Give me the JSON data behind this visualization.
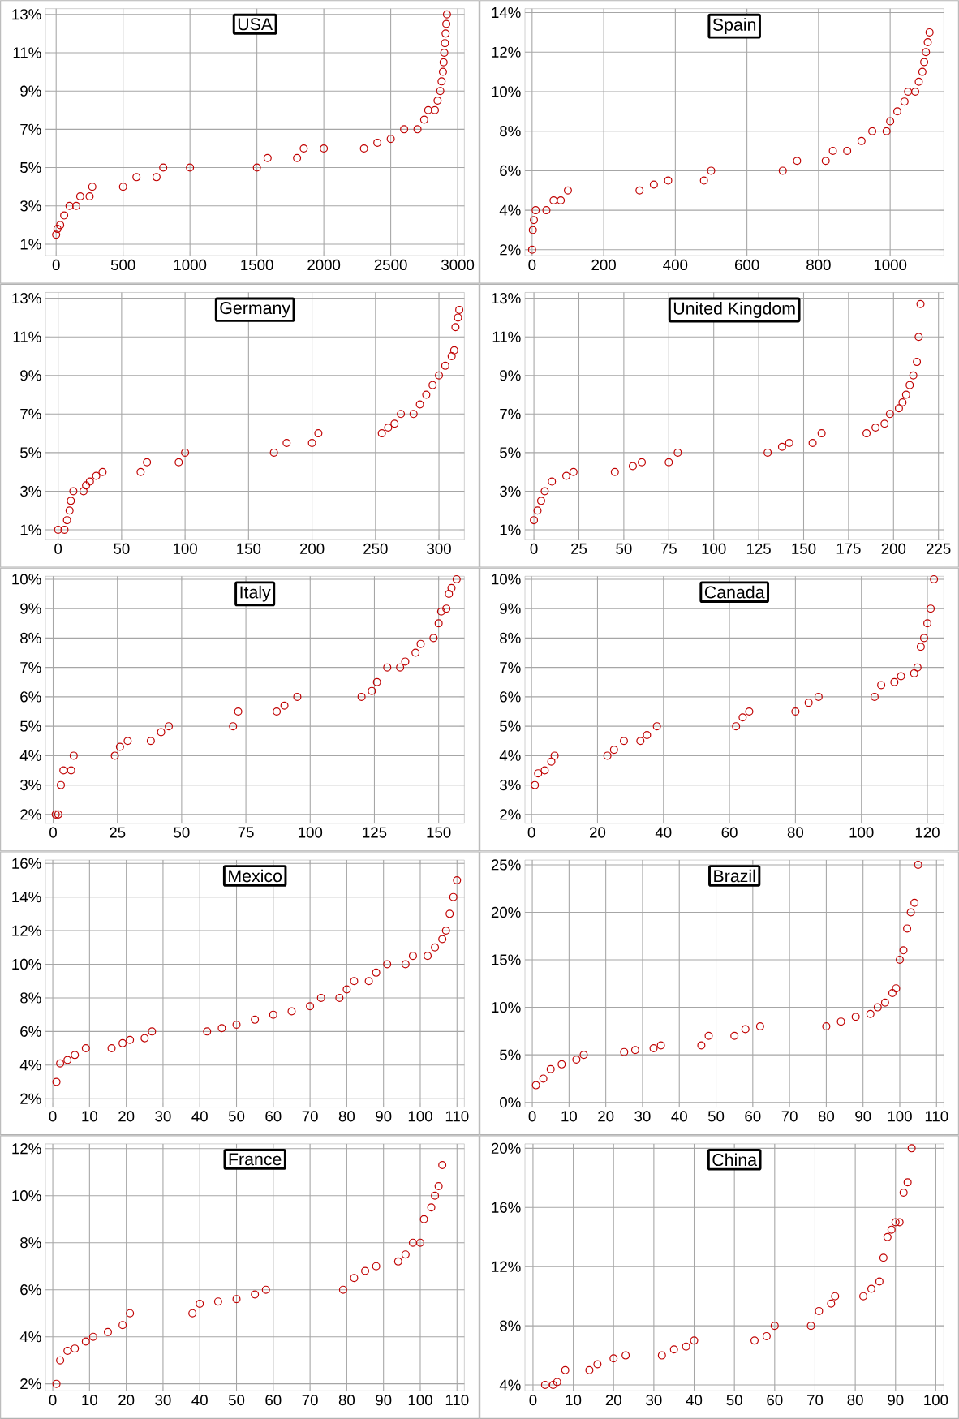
{
  "chart_data": [
    {
      "type": "scatter",
      "title": "USA",
      "color": "#c00000",
      "marker": "circle",
      "grid": true,
      "xlim": [
        -80,
        3050
      ],
      "xticks": [
        0,
        500,
        1000,
        1500,
        2000,
        2500,
        3000
      ],
      "ylim": [
        0.4,
        13.3
      ],
      "yticks": [
        {
          "value": 1,
          "label": "1%"
        },
        {
          "value": 3,
          "label": "3%"
        },
        {
          "value": 5,
          "label": "5%"
        },
        {
          "value": 7,
          "label": "7%"
        },
        {
          "value": 9,
          "label": "9%"
        },
        {
          "value": 11,
          "label": "11%"
        },
        {
          "value": 13,
          "label": "13%"
        }
      ],
      "x": [
        0,
        10,
        30,
        60,
        100,
        150,
        180,
        250,
        270,
        500,
        600,
        750,
        800,
        1000,
        1500,
        1580,
        1800,
        1850,
        2000,
        2300,
        2400,
        2500,
        2600,
        2700,
        2750,
        2780,
        2830,
        2850,
        2870,
        2880,
        2890,
        2895,
        2900,
        2905,
        2910,
        2915,
        2920
      ],
      "values": [
        1.5,
        1.8,
        2,
        2.5,
        3,
        3,
        3.5,
        3.5,
        4,
        4,
        4.5,
        4.5,
        5,
        5,
        5,
        5.5,
        5.5,
        6,
        6,
        6,
        6.3,
        6.5,
        7,
        7,
        7.5,
        8,
        8,
        8.5,
        9,
        9.5,
        10,
        10.5,
        11,
        11.5,
        12,
        12.5,
        13
      ]
    },
    {
      "type": "scatter",
      "title": "Spain",
      "color": "#c00000",
      "marker": "circle",
      "grid": true,
      "xlim": [
        -20,
        1150
      ],
      "xticks": [
        0,
        200,
        400,
        600,
        800,
        1000
      ],
      "ylim": [
        1.7,
        14.2
      ],
      "yticks": [
        {
          "value": 2,
          "label": "2%"
        },
        {
          "value": 4,
          "label": "4%"
        },
        {
          "value": 6,
          "label": "6%"
        },
        {
          "value": 8,
          "label": "8%"
        },
        {
          "value": 10,
          "label": "10%"
        },
        {
          "value": 12,
          "label": "12%"
        },
        {
          "value": 14,
          "label": "14%"
        }
      ],
      "x": [
        0,
        2,
        5,
        10,
        40,
        60,
        80,
        100,
        300,
        340,
        380,
        480,
        500,
        700,
        740,
        820,
        840,
        880,
        920,
        950,
        990,
        1000,
        1020,
        1040,
        1050,
        1070,
        1080,
        1090,
        1095,
        1100,
        1105,
        1110
      ],
      "values": [
        2,
        3,
        3.5,
        4,
        4,
        4.5,
        4.5,
        5,
        5,
        5.3,
        5.5,
        5.5,
        6,
        6,
        6.5,
        6.5,
        7,
        7,
        7.5,
        8,
        8,
        8.5,
        9,
        9.5,
        10,
        10,
        10.5,
        11,
        11.5,
        12,
        12.5,
        13
      ]
    },
    {
      "type": "scatter",
      "title": "Germany",
      "color": "#c00000",
      "marker": "circle",
      "grid": true,
      "xlim": [
        -10,
        320
      ],
      "xticks": [
        0,
        50,
        100,
        150,
        200,
        250,
        300
      ],
      "ylim": [
        0.5,
        13.3
      ],
      "yticks": [
        {
          "value": 1,
          "label": "1%"
        },
        {
          "value": 3,
          "label": "3%"
        },
        {
          "value": 5,
          "label": "5%"
        },
        {
          "value": 7,
          "label": "7%"
        },
        {
          "value": 9,
          "label": "9%"
        },
        {
          "value": 11,
          "label": "11%"
        },
        {
          "value": 13,
          "label": "13%"
        }
      ],
      "x": [
        0,
        5,
        7,
        9,
        10,
        12,
        20,
        22,
        25,
        30,
        35,
        65,
        70,
        95,
        100,
        170,
        180,
        200,
        205,
        255,
        260,
        265,
        270,
        280,
        285,
        290,
        295,
        300,
        305,
        310,
        312,
        313,
        315,
        316
      ],
      "values": [
        1,
        1,
        1.5,
        2,
        2.5,
        3,
        3,
        3.3,
        3.5,
        3.8,
        4,
        4,
        4.5,
        4.5,
        5,
        5,
        5.5,
        5.5,
        6,
        6,
        6.3,
        6.5,
        7,
        7,
        7.5,
        8,
        8.5,
        9,
        9.5,
        10,
        10.3,
        11.5,
        12,
        12.4
      ]
    },
    {
      "type": "scatter",
      "title": "United Kingdom",
      "color": "#c00000",
      "marker": "circle",
      "grid": true,
      "xlim": [
        -5,
        228
      ],
      "xticks": [
        0,
        25,
        50,
        75,
        100,
        125,
        150,
        175,
        200,
        225
      ],
      "ylim": [
        0.5,
        13.3
      ],
      "yticks": [
        {
          "value": 1,
          "label": "1%"
        },
        {
          "value": 3,
          "label": "3%"
        },
        {
          "value": 5,
          "label": "5%"
        },
        {
          "value": 7,
          "label": "7%"
        },
        {
          "value": 9,
          "label": "9%"
        },
        {
          "value": 11,
          "label": "11%"
        },
        {
          "value": 13,
          "label": "13%"
        }
      ],
      "x": [
        0,
        2,
        4,
        6,
        10,
        18,
        22,
        45,
        55,
        60,
        75,
        80,
        130,
        138,
        142,
        155,
        160,
        185,
        190,
        195,
        198,
        203,
        205,
        207,
        209,
        211,
        213,
        214,
        215
      ],
      "values": [
        1.5,
        2,
        2.5,
        3,
        3.5,
        3.8,
        4,
        4,
        4.3,
        4.5,
        4.5,
        5,
        5,
        5.3,
        5.5,
        5.5,
        6,
        6,
        6.3,
        6.5,
        7,
        7.3,
        7.6,
        8,
        8.5,
        9,
        9.7,
        11,
        12.7
      ]
    },
    {
      "type": "scatter",
      "title": "Italy",
      "color": "#c00000",
      "marker": "circle",
      "grid": true,
      "xlim": [
        -3,
        160
      ],
      "xticks": [
        0,
        25,
        50,
        75,
        100,
        125,
        150
      ],
      "ylim": [
        1.7,
        10.1
      ],
      "yticks": [
        {
          "value": 2,
          "label": "2%"
        },
        {
          "value": 3,
          "label": "3%"
        },
        {
          "value": 4,
          "label": "4%"
        },
        {
          "value": 5,
          "label": "5%"
        },
        {
          "value": 6,
          "label": "6%"
        },
        {
          "value": 7,
          "label": "7%"
        },
        {
          "value": 8,
          "label": "8%"
        },
        {
          "value": 9,
          "label": "9%"
        },
        {
          "value": 10,
          "label": "10%"
        }
      ],
      "x": [
        1,
        2,
        3,
        4,
        7,
        8,
        24,
        26,
        29,
        38,
        42,
        45,
        70,
        72,
        87,
        90,
        95,
        120,
        124,
        126,
        130,
        135,
        137,
        141,
        143,
        148,
        150,
        151,
        153,
        154,
        155,
        157
      ],
      "values": [
        2,
        2,
        3,
        3.5,
        3.5,
        4,
        4,
        4.3,
        4.5,
        4.5,
        4.8,
        5,
        5,
        5.5,
        5.5,
        5.7,
        6,
        6,
        6.2,
        6.5,
        7,
        7,
        7.2,
        7.5,
        7.8,
        8,
        8.5,
        8.9,
        9,
        9.5,
        9.7,
        10
      ]
    },
    {
      "type": "scatter",
      "title": "Canada",
      "color": "#c00000",
      "marker": "circle",
      "grid": true,
      "xlim": [
        -2,
        125
      ],
      "xticks": [
        0,
        20,
        40,
        60,
        80,
        100,
        120
      ],
      "ylim": [
        1.7,
        10.1
      ],
      "yticks": [
        {
          "value": 2,
          "label": "2%"
        },
        {
          "value": 3,
          "label": "3%"
        },
        {
          "value": 4,
          "label": "4%"
        },
        {
          "value": 5,
          "label": "5%"
        },
        {
          "value": 6,
          "label": "6%"
        },
        {
          "value": 7,
          "label": "7%"
        },
        {
          "value": 8,
          "label": "8%"
        },
        {
          "value": 9,
          "label": "9%"
        },
        {
          "value": 10,
          "label": "10%"
        }
      ],
      "x": [
        1,
        2,
        4,
        6,
        7,
        23,
        25,
        28,
        33,
        35,
        38,
        62,
        64,
        66,
        80,
        84,
        87,
        104,
        106,
        110,
        112,
        116,
        117,
        118,
        119,
        120,
        121,
        122
      ],
      "values": [
        3,
        3.4,
        3.5,
        3.8,
        4,
        4,
        4.2,
        4.5,
        4.5,
        4.7,
        5,
        5,
        5.3,
        5.5,
        5.5,
        5.8,
        6,
        6,
        6.4,
        6.5,
        6.7,
        6.8,
        7,
        7.7,
        8,
        8.5,
        9,
        10
      ]
    },
    {
      "type": "scatter",
      "title": "Mexico",
      "color": "#c00000",
      "marker": "circle",
      "grid": true,
      "xlim": [
        -2,
        112
      ],
      "xticks": [
        0,
        10,
        20,
        30,
        40,
        50,
        60,
        70,
        80,
        90,
        100,
        110
      ],
      "ylim": [
        1.5,
        16.2
      ],
      "yticks": [
        {
          "value": 2,
          "label": "2%"
        },
        {
          "value": 4,
          "label": "4%"
        },
        {
          "value": 6,
          "label": "6%"
        },
        {
          "value": 8,
          "label": "8%"
        },
        {
          "value": 10,
          "label": "10%"
        },
        {
          "value": 12,
          "label": "12%"
        },
        {
          "value": 14,
          "label": "14%"
        },
        {
          "value": 16,
          "label": "16%"
        }
      ],
      "x": [
        1,
        2,
        4,
        6,
        9,
        16,
        19,
        21,
        25,
        27,
        42,
        46,
        50,
        55,
        60,
        65,
        70,
        73,
        78,
        80,
        82,
        86,
        88,
        91,
        96,
        98,
        102,
        104,
        106,
        107,
        108,
        109,
        110
      ],
      "values": [
        3,
        4.1,
        4.3,
        4.6,
        5,
        5,
        5.3,
        5.5,
        5.6,
        6,
        6,
        6.2,
        6.4,
        6.7,
        7,
        7.2,
        7.5,
        8,
        8,
        8.5,
        9,
        9,
        9.5,
        10,
        10,
        10.5,
        10.5,
        11,
        11.5,
        12,
        13,
        14,
        15
      ]
    },
    {
      "type": "scatter",
      "title": "Brazil",
      "color": "#c00000",
      "marker": "circle",
      "grid": true,
      "xlim": [
        -2,
        112
      ],
      "xticks": [
        0,
        10,
        20,
        30,
        40,
        50,
        60,
        70,
        80,
        90,
        100,
        110
      ],
      "ylim": [
        -0.5,
        25.5
      ],
      "yticks": [
        {
          "value": 0,
          "label": "0%"
        },
        {
          "value": 5,
          "label": "5%"
        },
        {
          "value": 10,
          "label": "10%"
        },
        {
          "value": 15,
          "label": "15%"
        },
        {
          "value": 20,
          "label": "20%"
        },
        {
          "value": 25,
          "label": "25%"
        }
      ],
      "x": [
        1,
        3,
        5,
        8,
        12,
        14,
        25,
        28,
        33,
        35,
        46,
        48,
        55,
        58,
        62,
        80,
        84,
        88,
        92,
        94,
        96,
        98,
        99,
        100,
        101,
        102,
        103,
        104,
        105
      ],
      "values": [
        1.8,
        2.5,
        3.5,
        4,
        4.5,
        5,
        5.3,
        5.5,
        5.7,
        6,
        6,
        7,
        7,
        7.7,
        8,
        8,
        8.5,
        9,
        9.3,
        10,
        10.5,
        11.5,
        12,
        15,
        16,
        18.3,
        20,
        21,
        25
      ]
    },
    {
      "type": "scatter",
      "title": "France",
      "color": "#c00000",
      "marker": "circle",
      "grid": true,
      "xlim": [
        -2,
        112
      ],
      "xticks": [
        0,
        10,
        20,
        30,
        40,
        50,
        60,
        70,
        80,
        90,
        100,
        110
      ],
      "ylim": [
        1.7,
        12.2
      ],
      "yticks": [
        {
          "value": 2,
          "label": "2%"
        },
        {
          "value": 4,
          "label": "4%"
        },
        {
          "value": 6,
          "label": "6%"
        },
        {
          "value": 8,
          "label": "8%"
        },
        {
          "value": 10,
          "label": "10%"
        },
        {
          "value": 12,
          "label": "12%"
        }
      ],
      "x": [
        1,
        2,
        4,
        6,
        9,
        11,
        15,
        19,
        21,
        38,
        40,
        45,
        50,
        55,
        58,
        79,
        82,
        85,
        88,
        94,
        96,
        98,
        100,
        101,
        103,
        104,
        105,
        106
      ],
      "values": [
        2,
        3,
        3.4,
        3.5,
        3.8,
        4,
        4.2,
        4.5,
        5,
        5,
        5.4,
        5.5,
        5.6,
        5.8,
        6,
        6,
        6.5,
        6.8,
        7,
        7.2,
        7.5,
        8,
        8,
        9,
        9.5,
        10,
        10.4,
        11.3
      ]
    },
    {
      "type": "scatter",
      "title": "China",
      "color": "#c00000",
      "marker": "circle",
      "grid": true,
      "xlim": [
        -2,
        102
      ],
      "xticks": [
        0,
        10,
        20,
        30,
        40,
        50,
        60,
        70,
        80,
        90,
        100
      ],
      "ylim": [
        3.6,
        20.3
      ],
      "yticks": [
        {
          "value": 4,
          "label": "4%"
        },
        {
          "value": 8,
          "label": "8%"
        },
        {
          "value": 12,
          "label": "12%"
        },
        {
          "value": 16,
          "label": "16%"
        },
        {
          "value": 20,
          "label": "20%"
        }
      ],
      "x": [
        3,
        5,
        6,
        8,
        14,
        16,
        20,
        23,
        32,
        35,
        38,
        40,
        55,
        58,
        60,
        69,
        71,
        74,
        75,
        82,
        84,
        86,
        87,
        88,
        89,
        90,
        91,
        92,
        93,
        94
      ],
      "values": [
        4,
        4,
        4.2,
        5,
        5,
        5.4,
        5.8,
        6,
        6,
        6.4,
        6.6,
        7,
        7,
        7.3,
        8,
        8,
        9,
        9.5,
        10,
        10,
        10.5,
        11,
        12.6,
        14,
        14.5,
        15,
        15,
        17,
        17.7,
        20
      ]
    }
  ]
}
